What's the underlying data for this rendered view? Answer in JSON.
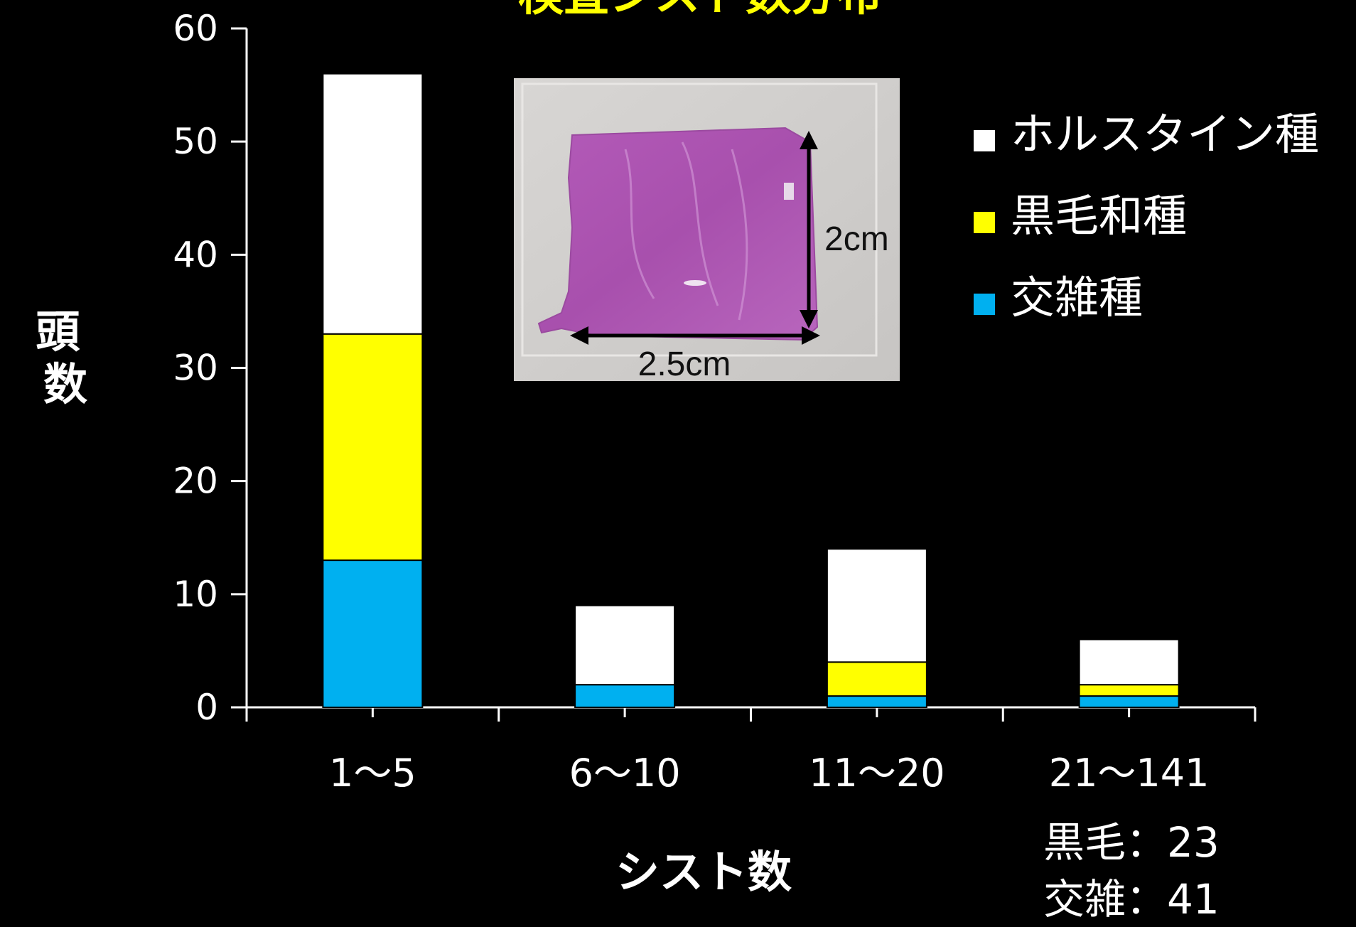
{
  "chart_data": {
    "type": "bar",
    "stacked": true,
    "title": "検査シスト数分布",
    "xlabel": "シスト数",
    "ylabel": "頭数",
    "ylim": [
      0,
      60
    ],
    "yticks": [
      0,
      10,
      20,
      30,
      40,
      50,
      60
    ],
    "categories": [
      "1～5",
      "6～10",
      "11～20",
      "21～141"
    ],
    "series": [
      {
        "name": "交雑種",
        "color": "#00b0f0",
        "values": [
          13,
          2,
          1,
          1
        ]
      },
      {
        "name": "黒毛和種",
        "color": "#ffff00",
        "values": [
          20,
          0,
          3,
          1
        ]
      },
      {
        "name": "ホルスタイン種",
        "color": "#ffffff",
        "values": [
          23,
          7,
          10,
          4
        ]
      }
    ],
    "legend_position": "top-right",
    "grid": false,
    "annotations": {
      "notes": [
        "黒毛：23",
        "交雑：41"
      ],
      "inset_width_label": "2.5cm",
      "inset_height_label": "2cm"
    }
  }
}
